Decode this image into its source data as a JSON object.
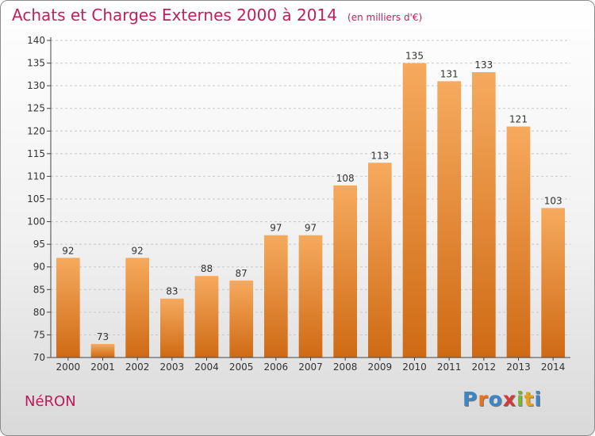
{
  "title": "Achats et Charges Externes 2000 à 2014",
  "subtitle": "(en milliers d'€)",
  "place": "NéRON",
  "logo": {
    "text": "Proxiti",
    "letters": [
      {
        "char": "P",
        "color": "#3d86c6"
      },
      {
        "char": "r",
        "color": "#e8731a"
      },
      {
        "char": "o",
        "color": "#3d86c6"
      },
      {
        "char": "x",
        "color": "#d43a3a"
      },
      {
        "char": "i",
        "color": "#78b833"
      },
      {
        "char": "t",
        "color": "#e8a21a"
      },
      {
        "char": "i",
        "color": "#3d86c6"
      }
    ]
  },
  "colors": {
    "title": "#bf1f5a",
    "bar_top": "#f6aa5e",
    "bar_bottom": "#cf6a14",
    "axis": "#444444",
    "grid": "#c8c8c8"
  },
  "chart_data": {
    "type": "bar",
    "categories": [
      "2000",
      "2001",
      "2002",
      "2003",
      "2004",
      "2005",
      "2006",
      "2007",
      "2008",
      "2009",
      "2010",
      "2011",
      "2012",
      "2013",
      "2014"
    ],
    "values": [
      92,
      73,
      92,
      83,
      88,
      87,
      97,
      97,
      108,
      113,
      135,
      131,
      133,
      121,
      103
    ],
    "title": "Achats et Charges Externes 2000 à 2014",
    "subtitle": "(en milliers d'€)",
    "xlabel": "",
    "ylabel": "",
    "ylim": [
      70,
      140
    ],
    "yticks": [
      70,
      75,
      80,
      85,
      90,
      95,
      100,
      105,
      110,
      115,
      120,
      125,
      130,
      135,
      140
    ],
    "grid": true,
    "data_labels": true
  }
}
